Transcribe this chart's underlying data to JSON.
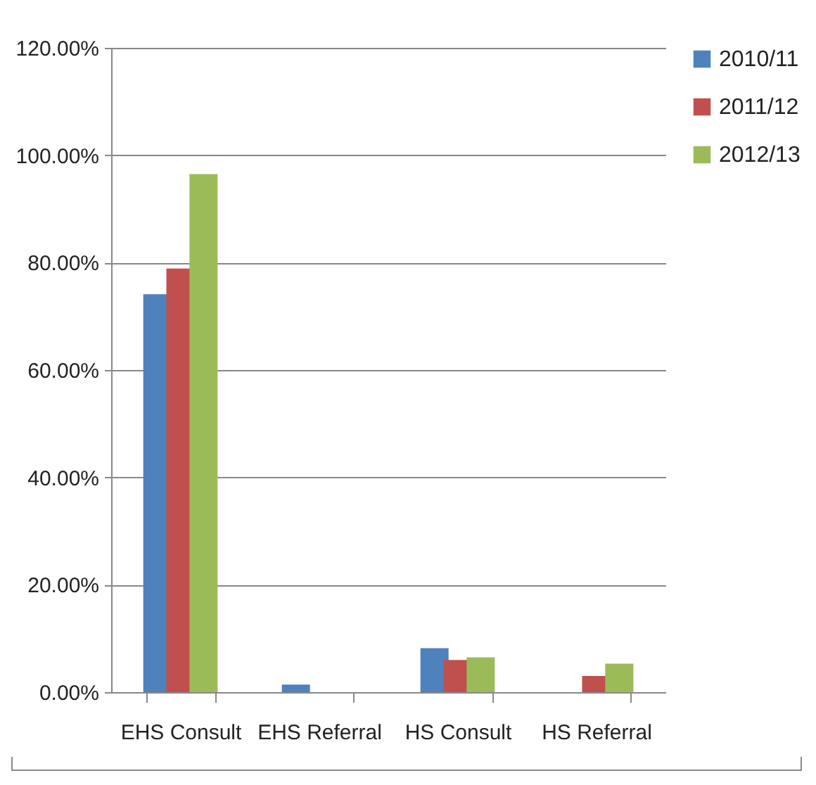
{
  "chart_data": {
    "type": "bar",
    "categories": [
      "EHS Consult",
      "EHS Referral",
      "HS Consult",
      "HS Referral"
    ],
    "series": [
      {
        "name": "2010/11",
        "color": "#4f81bd",
        "values": [
          74.1,
          1.4,
          8.2,
          0
        ]
      },
      {
        "name": "2011/12",
        "color": "#c0504d",
        "values": [
          78.9,
          0,
          6.0,
          3.0
        ]
      },
      {
        "name": "2012/13",
        "color": "#9bbb59",
        "values": [
          96.5,
          0,
          6.5,
          5.3
        ]
      }
    ],
    "ylim": [
      0,
      120
    ],
    "yticks": [
      {
        "value": 0,
        "label": "0.00%"
      },
      {
        "value": 20,
        "label": "20.00%"
      },
      {
        "value": 40,
        "label": "40.00%"
      },
      {
        "value": 60,
        "label": "60.00%"
      },
      {
        "value": 80,
        "label": "80.00%"
      },
      {
        "value": 100,
        "label": "100.00%"
      },
      {
        "value": 120,
        "label": "120.00%"
      }
    ],
    "grid": "y",
    "legend": "right"
  }
}
